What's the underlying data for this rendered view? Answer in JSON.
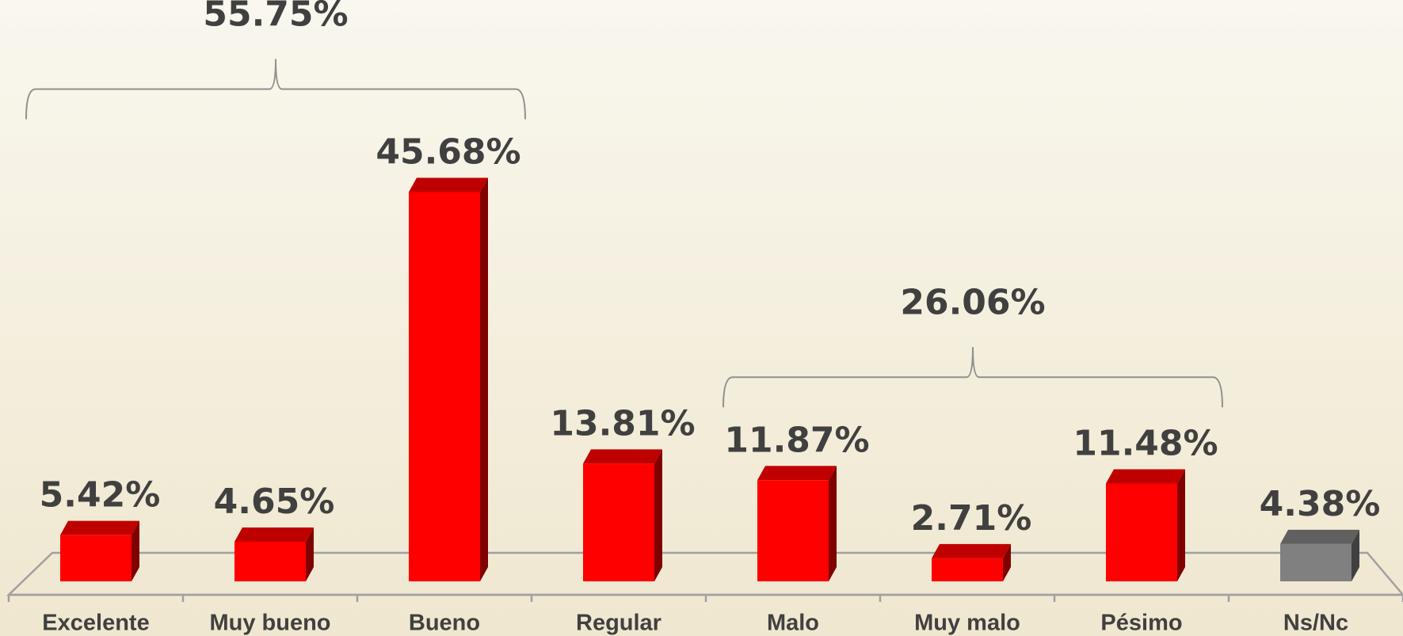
{
  "chart_data": {
    "type": "bar3d",
    "categories": [
      "Excelente",
      "Muy bueno",
      "Bueno",
      "Regular",
      "Malo",
      "Muy malo",
      "Pésimo",
      "Ns/Nc"
    ],
    "values": [
      5.42,
      4.65,
      45.68,
      13.81,
      11.87,
      2.71,
      11.48,
      4.38
    ],
    "value_labels": [
      "5.42%",
      "4.65%",
      "45.68%",
      "13.81%",
      "11.87%",
      "2.71%",
      "11.48%",
      "4.38%"
    ],
    "colors": [
      "#ff0000",
      "#ff0000",
      "#ff0000",
      "#ff0000",
      "#ff0000",
      "#ff0000",
      "#ff0000",
      "#808080"
    ],
    "ylim": [
      0,
      50
    ],
    "annotations": [
      {
        "text": "55.75%",
        "span": [
          "Excelente",
          "Bueno"
        ]
      },
      {
        "text": "26.06%",
        "span": [
          "Malo",
          "Pésimo"
        ]
      }
    ]
  }
}
